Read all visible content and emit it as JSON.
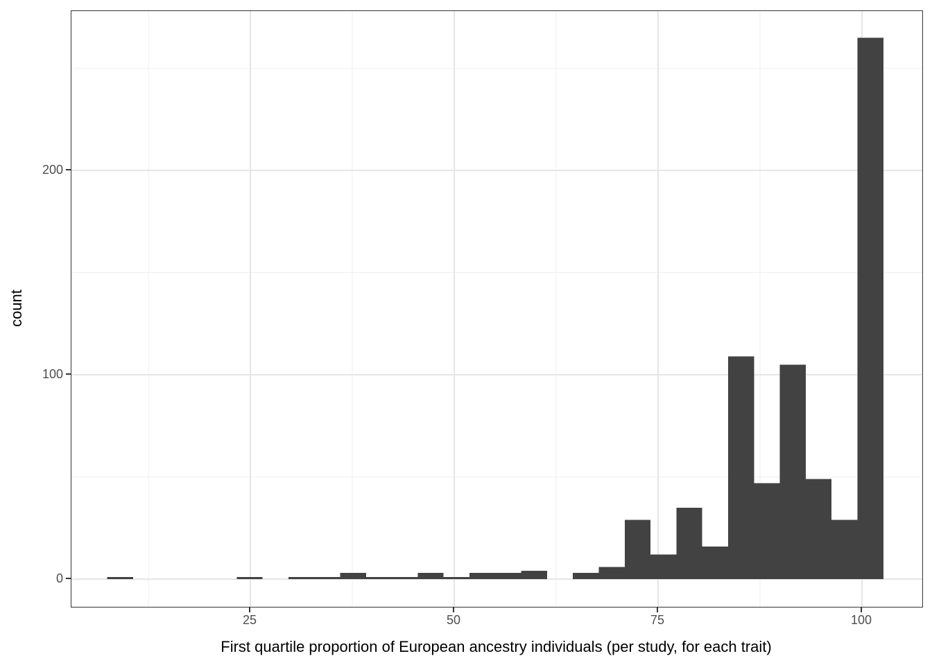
{
  "chart_data": {
    "type": "bar",
    "subtype": "histogram",
    "title": "",
    "xlabel": "First quartile proportion of European ancestry individuals (per study, for each trait)",
    "ylabel": "count",
    "xlim": [
      3.06,
      107.4
    ],
    "ylim": [
      -13.56,
      277.97
    ],
    "grid": "major+minor",
    "legend_position": "none",
    "x_axis": {
      "major_ticks": [
        25,
        50,
        75,
        100
      ],
      "major_tick_labels": [
        "25",
        "50",
        "75",
        "100"
      ],
      "minor_ticks": [
        12.5,
        37.5,
        62.5,
        87.5
      ]
    },
    "y_axis": {
      "major_ticks": [
        0,
        100,
        200
      ],
      "major_tick_labels": [
        "0",
        "100",
        "200"
      ],
      "minor_ticks": [
        50,
        150,
        250
      ]
    },
    "histogram": {
      "bin_start": 7.46,
      "bin_width": 3.172,
      "counts": [
        1,
        0,
        0,
        0,
        0,
        1,
        0,
        1,
        1,
        3,
        1,
        1,
        3,
        1,
        3,
        3,
        4,
        0,
        3,
        6,
        29,
        12,
        35,
        16,
        109,
        47,
        105,
        49,
        29,
        265
      ]
    },
    "colors": {
      "bar_fill": "#424242",
      "grid_major": "#e5e5e5",
      "grid_minor": "#efefef",
      "panel_border": "#333333",
      "tick_mark": "#333333",
      "tick_text": "#4d4d4d",
      "axis_title_text": "#000000",
      "background": "#ffffff"
    }
  }
}
